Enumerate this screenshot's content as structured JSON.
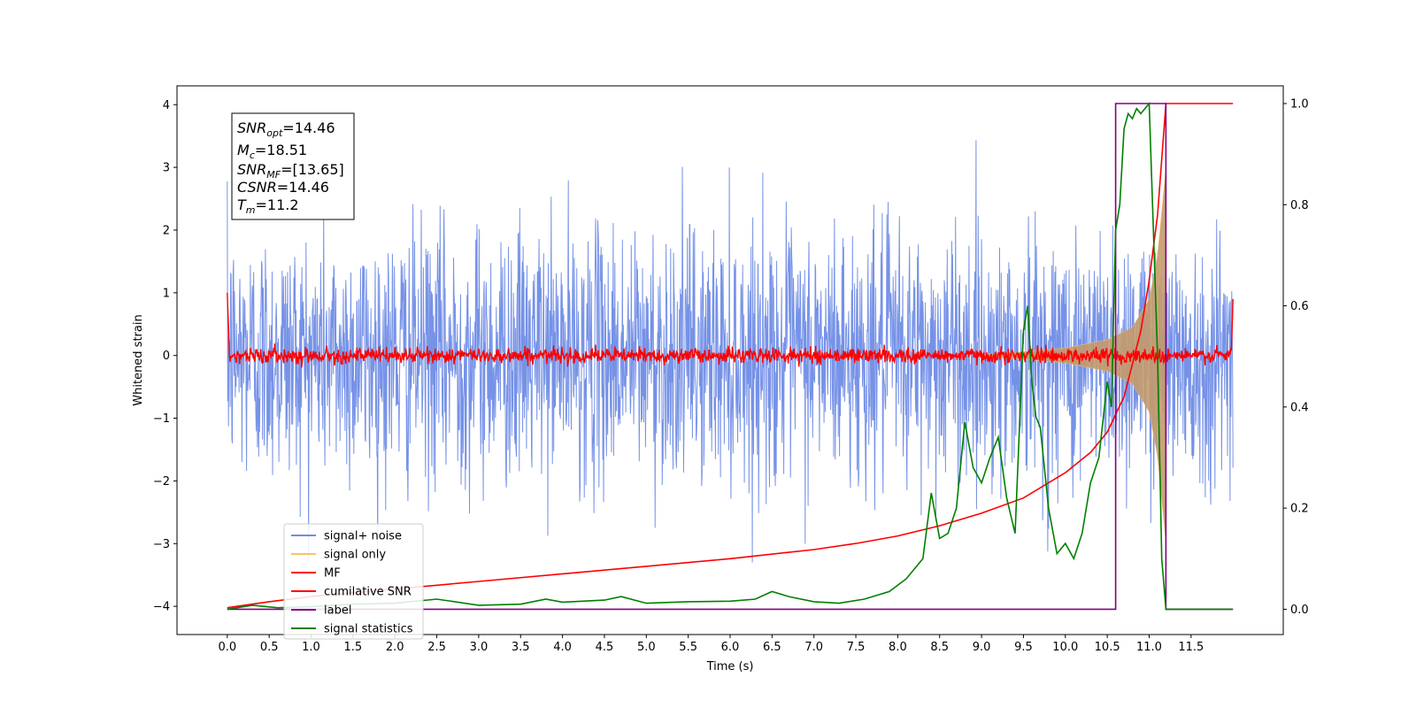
{
  "chart_data": {
    "type": "line",
    "title": "",
    "xlabel": "Time (s)",
    "ylabel": "Whitened strain",
    "xlim": [
      -0.6,
      12.6
    ],
    "ylim": [
      -4.45,
      4.3
    ],
    "y2lim": [
      -0.05,
      1.035
    ],
    "xticks": [
      "0.0",
      "0.5",
      "1.0",
      "1.5",
      "2.0",
      "2.5",
      "3.0",
      "3.5",
      "4.0",
      "4.5",
      "5.0",
      "5.5",
      "6.0",
      "6.5",
      "7.0",
      "7.5",
      "8.0",
      "8.5",
      "9.0",
      "9.5",
      "10.0",
      "10.5",
      "11.0",
      "11.5"
    ],
    "yticks": [
      "−4",
      "−3",
      "−2",
      "−1",
      "0",
      "1",
      "2",
      "3",
      "4"
    ],
    "y2ticks": [
      "0.0",
      "0.2",
      "0.4",
      "0.6",
      "0.8",
      "1.0"
    ],
    "grid": false,
    "legend_position": "bottom-left",
    "annotation": {
      "snr_opt": {
        "base": "SNR",
        "sub": "opt",
        "value": "=14.46"
      },
      "mc": {
        "base": "M",
        "sub": "c",
        "value": "=18.51"
      },
      "snr_mf": {
        "base": "SNR",
        "sub": "MF",
        "value": "=[13.65]"
      },
      "csnr": {
        "base": "CSNR",
        "sub": "",
        "value": "=14.46"
      },
      "tm": {
        "base": "T",
        "sub": "m",
        "value": "=11.2"
      }
    },
    "series": [
      {
        "name": "signal+ noise",
        "color": "#6f8ce6",
        "axis": "left",
        "description_range": [
          -3.3,
          3.9
        ],
        "x_range": [
          0,
          12
        ]
      },
      {
        "name": "signal only",
        "color": "#f5c36b",
        "axis": "left",
        "envelope": {
          "x": [
            9.0,
            9.5,
            10.0,
            10.5,
            10.8,
            11.0,
            11.1,
            11.2
          ],
          "amp": [
            0.02,
            0.06,
            0.12,
            0.25,
            0.45,
            0.9,
            1.6,
            3.0
          ]
        }
      },
      {
        "name": "MF",
        "color": "#ff0000",
        "axis": "left",
        "noise_amp": 0.12,
        "x_range": [
          0,
          12
        ],
        "start_value": 1.0,
        "end_value": 0.9
      },
      {
        "name": "cumilative SNR",
        "color": "#ff0000",
        "axis": "right",
        "x": [
          0.0,
          0.5,
          1.0,
          2.0,
          3.0,
          4.0,
          5.0,
          6.0,
          7.0,
          7.5,
          8.0,
          8.5,
          9.0,
          9.5,
          10.0,
          10.3,
          10.5,
          10.7,
          10.9,
          11.0,
          11.1,
          11.2,
          12.0
        ],
        "y": [
          0.003,
          0.015,
          0.025,
          0.04,
          0.055,
          0.07,
          0.085,
          0.1,
          0.118,
          0.13,
          0.145,
          0.165,
          0.19,
          0.22,
          0.27,
          0.31,
          0.35,
          0.42,
          0.55,
          0.65,
          0.78,
          1.0,
          1.0
        ]
      },
      {
        "name": "label",
        "color": "#800080",
        "axis": "right",
        "x": [
          0.0,
          10.6,
          10.6,
          11.2,
          11.2,
          12.0
        ],
        "y": [
          0.0,
          0.0,
          1.0,
          1.0,
          0.0,
          0.0
        ]
      },
      {
        "name": "signal statistics",
        "color": "#008000",
        "axis": "right",
        "x": [
          0.0,
          0.3,
          0.6,
          1.0,
          1.5,
          2.0,
          2.5,
          3.0,
          3.5,
          3.8,
          4.0,
          4.5,
          4.7,
          5.0,
          5.5,
          6.0,
          6.3,
          6.5,
          6.7,
          7.0,
          7.3,
          7.6,
          7.9,
          8.1,
          8.3,
          8.4,
          8.5,
          8.6,
          8.7,
          8.8,
          8.9,
          9.0,
          9.1,
          9.2,
          9.3,
          9.4,
          9.5,
          9.55,
          9.6,
          9.65,
          9.7,
          9.8,
          9.9,
          10.0,
          10.1,
          10.2,
          10.3,
          10.4,
          10.5,
          10.55,
          10.6,
          10.65,
          10.7,
          10.75,
          10.8,
          10.85,
          10.9,
          11.0,
          11.1,
          11.15,
          11.2,
          11.25,
          11.3,
          12.0
        ],
        "y": [
          0.0,
          0.008,
          0.003,
          0.005,
          0.01,
          0.012,
          0.02,
          0.008,
          0.01,
          0.02,
          0.014,
          0.018,
          0.025,
          0.012,
          0.015,
          0.016,
          0.02,
          0.035,
          0.025,
          0.015,
          0.012,
          0.02,
          0.035,
          0.06,
          0.1,
          0.23,
          0.14,
          0.15,
          0.2,
          0.37,
          0.28,
          0.25,
          0.3,
          0.34,
          0.22,
          0.15,
          0.55,
          0.6,
          0.45,
          0.38,
          0.36,
          0.2,
          0.11,
          0.13,
          0.1,
          0.15,
          0.25,
          0.3,
          0.45,
          0.4,
          0.75,
          0.8,
          0.95,
          0.98,
          0.97,
          0.99,
          0.98,
          1.0,
          0.5,
          0.1,
          0.0,
          0.0,
          0.0,
          0.0
        ]
      }
    ]
  }
}
